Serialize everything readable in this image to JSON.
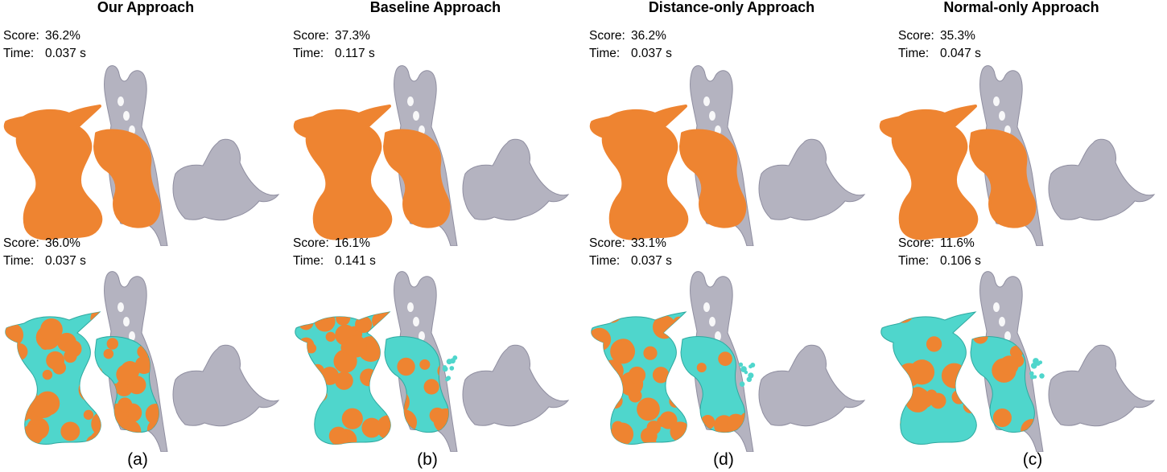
{
  "columns": [
    {
      "title": "Our Approach",
      "caption": "(a)",
      "rows": [
        {
          "score_label": "Score:",
          "score": "36.2%",
          "time_label": "Time:",
          "time": "0.037 s"
        },
        {
          "score_label": "Score:",
          "score": "36.0%",
          "time_label": "Time:",
          "time": "0.037 s"
        }
      ]
    },
    {
      "title": "Baseline Approach",
      "caption": "(b)",
      "rows": [
        {
          "score_label": "Score:",
          "score": "37.3%",
          "time_label": "Time:",
          "time": "0.117 s"
        },
        {
          "score_label": "Score:",
          "score": "16.1%",
          "time_label": "Time:",
          "time": "0.141 s"
        }
      ]
    },
    {
      "title": "Distance-only Approach",
      "caption": "(d)",
      "rows": [
        {
          "score_label": "Score:",
          "score": "36.2%",
          "time_label": "Time:",
          "time": "0.037 s"
        },
        {
          "score_label": "Score:",
          "score": "33.1%",
          "time_label": "Time:",
          "time": "0.037 s"
        }
      ]
    },
    {
      "title": "Normal-only Approach",
      "caption": "(c)",
      "rows": [
        {
          "score_label": "Score:",
          "score": "35.3%",
          "time_label": "Time:",
          "time": "0.047 s"
        },
        {
          "score_label": "Score:",
          "score": "11.6%",
          "time_label": "Time:",
          "time": "0.106 s"
        }
      ]
    }
  ],
  "colors": {
    "points": "#ee8431",
    "model": "#4fd6cc",
    "scene_objects": "#b4b3c0",
    "scene_shadow": "#8f8ea0"
  }
}
